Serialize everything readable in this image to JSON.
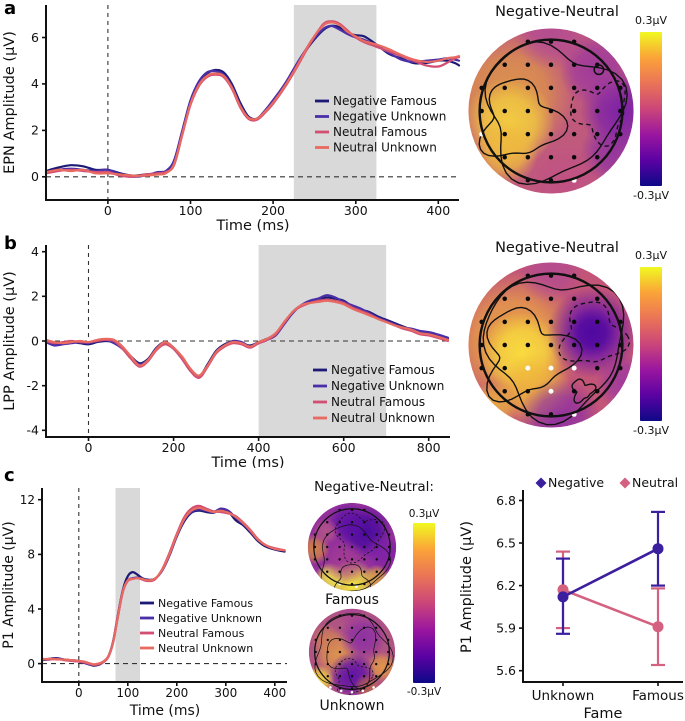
{
  "figure": {
    "panels": [
      {
        "label": "a",
        "topo": {
          "title": "Negative-Neutral",
          "cbar_top": "0.3µV",
          "cbar_bottom": "-0.3µV"
        }
      },
      {
        "label": "b",
        "topo": {
          "title": "Negative-Neutral",
          "cbar_top": "0.3µV",
          "cbar_bottom": "-0.3µV"
        }
      },
      {
        "label": "c",
        "topo": {
          "title": "Negative-Neutral:",
          "cbar_top": "0.3µV",
          "cbar_bottom": "-0.3µV",
          "map_labels": [
            "Famous",
            "Unknown"
          ]
        }
      }
    ],
    "colors": {
      "negative_famous": "#1c1a75",
      "negative_unknown": "#4a2fa8",
      "neutral_famous": "#d24e72",
      "neutral_unknown": "#e86a60",
      "negative": "#3b1f9e",
      "neutral": "#d4617f",
      "highlight_band": "#d9d9d9",
      "plasma": [
        "#0d0887",
        "#5b02a3",
        "#9a169f",
        "#cb4679",
        "#ea7457",
        "#fba338",
        "#f0f921"
      ]
    }
  },
  "chart_data": [
    {
      "id": "epn_erp",
      "type": "line",
      "panel": "a",
      "xlabel": "Time (ms)",
      "ylabel": "EPN Amplitude (µV)",
      "xlim": [
        -75,
        425
      ],
      "ylim": [
        -1.0,
        7.4
      ],
      "xticks": [
        0,
        100,
        200,
        300,
        400
      ],
      "yticks": [
        0,
        2,
        4,
        6
      ],
      "highlight_x": [
        225,
        325
      ],
      "zero_dashed_lines": true,
      "legend_position": "right-center",
      "x": [
        -75,
        -60,
        -45,
        -30,
        -15,
        0,
        15,
        30,
        45,
        60,
        70,
        80,
        90,
        100,
        110,
        120,
        130,
        140,
        150,
        160,
        170,
        180,
        190,
        200,
        215,
        230,
        245,
        260,
        270,
        280,
        290,
        300,
        310,
        325,
        340,
        355,
        370,
        385,
        400,
        410,
        420,
        425
      ],
      "series": [
        {
          "name": "Negative Famous",
          "color": "#1c1a75",
          "values": [
            0.25,
            0.4,
            0.5,
            0.45,
            0.3,
            0.3,
            0.15,
            0.05,
            0.1,
            0.15,
            0.2,
            0.6,
            1.9,
            3.2,
            4.0,
            4.45,
            4.6,
            4.5,
            4.0,
            3.2,
            2.6,
            2.5,
            2.8,
            3.25,
            4.0,
            4.9,
            5.7,
            6.3,
            6.5,
            6.45,
            6.2,
            6.1,
            6.05,
            5.7,
            5.3,
            5.1,
            4.9,
            4.9,
            5.0,
            5.0,
            4.9,
            4.8
          ]
        },
        {
          "name": "Negative Unknown",
          "color": "#4a2fa8",
          "values": [
            0.2,
            0.3,
            0.35,
            0.3,
            0.25,
            0.3,
            0.1,
            0.0,
            0.05,
            0.2,
            0.25,
            0.7,
            2.0,
            3.3,
            4.1,
            4.5,
            4.55,
            4.4,
            3.9,
            3.1,
            2.55,
            2.5,
            2.85,
            3.3,
            4.05,
            4.95,
            5.75,
            6.35,
            6.5,
            6.35,
            6.15,
            6.0,
            5.9,
            5.65,
            5.35,
            5.05,
            4.95,
            5.0,
            5.05,
            5.1,
            5.05,
            5.0
          ]
        },
        {
          "name": "Neutral Famous",
          "color": "#d24e72",
          "values": [
            0.15,
            0.25,
            0.3,
            0.25,
            0.2,
            0.2,
            0.05,
            0.0,
            0.1,
            0.15,
            0.2,
            0.5,
            1.8,
            3.1,
            3.9,
            4.3,
            4.4,
            4.3,
            3.8,
            3.0,
            2.5,
            2.45,
            2.75,
            3.15,
            3.9,
            4.8,
            5.75,
            6.55,
            6.7,
            6.6,
            6.3,
            6.0,
            5.8,
            5.6,
            5.4,
            5.2,
            5.0,
            4.8,
            4.75,
            4.9,
            5.1,
            5.15
          ]
        },
        {
          "name": "Neutral Unknown",
          "color": "#e86a60",
          "values": [
            0.2,
            0.3,
            0.25,
            0.3,
            0.15,
            0.15,
            0.1,
            0.05,
            0.05,
            0.1,
            0.15,
            0.55,
            1.85,
            3.15,
            3.95,
            4.35,
            4.45,
            4.35,
            3.85,
            3.05,
            2.55,
            2.5,
            2.8,
            3.2,
            3.95,
            4.85,
            5.8,
            6.5,
            6.65,
            6.55,
            6.25,
            6.05,
            5.85,
            5.7,
            5.5,
            5.25,
            5.05,
            4.95,
            5.0,
            5.1,
            5.15,
            5.2
          ]
        }
      ]
    },
    {
      "id": "lpp_erp",
      "type": "line",
      "panel": "b",
      "xlabel": "Time (ms)",
      "ylabel": "LPP Amplitude (µV)",
      "xlim": [
        -100,
        850
      ],
      "ylim": [
        -4.3,
        4.3
      ],
      "xticks": [
        0,
        200,
        400,
        600,
        800
      ],
      "yticks": [
        -4,
        -2,
        0,
        2,
        4
      ],
      "highlight_x": [
        400,
        700
      ],
      "zero_dashed_lines": true,
      "legend_position": "right-lower",
      "x": [
        -100,
        -80,
        -60,
        -40,
        -20,
        0,
        20,
        40,
        60,
        80,
        100,
        120,
        140,
        160,
        180,
        200,
        220,
        240,
        260,
        280,
        300,
        320,
        340,
        360,
        380,
        400,
        420,
        440,
        460,
        480,
        500,
        520,
        540,
        560,
        580,
        600,
        620,
        640,
        660,
        680,
        700,
        720,
        740,
        760,
        780,
        800,
        820,
        845
      ],
      "series": [
        {
          "name": "Negative Famous",
          "color": "#1c1a75",
          "values": [
            0.0,
            -0.15,
            -0.1,
            -0.05,
            -0.1,
            -0.15,
            -0.05,
            0.0,
            -0.05,
            -0.3,
            -0.7,
            -1.0,
            -0.8,
            -0.3,
            -0.05,
            -0.3,
            -0.75,
            -1.3,
            -1.6,
            -1.05,
            -0.45,
            -0.15,
            -0.05,
            -0.1,
            -0.2,
            -0.05,
            0.1,
            0.3,
            0.8,
            1.3,
            1.6,
            1.75,
            1.85,
            1.95,
            1.9,
            1.8,
            1.55,
            1.4,
            1.3,
            1.1,
            0.95,
            0.8,
            0.65,
            0.5,
            0.4,
            0.35,
            0.25,
            0.1
          ]
        },
        {
          "name": "Negative Unknown",
          "color": "#4a2fa8",
          "values": [
            -0.05,
            -0.2,
            -0.15,
            -0.1,
            -0.05,
            -0.1,
            0.0,
            0.05,
            -0.1,
            -0.35,
            -0.75,
            -1.05,
            -0.85,
            -0.35,
            -0.1,
            -0.35,
            -0.8,
            -1.35,
            -1.6,
            -1.1,
            -0.5,
            -0.2,
            0.0,
            -0.05,
            -0.25,
            -0.1,
            0.05,
            0.25,
            0.75,
            1.25,
            1.6,
            1.8,
            1.9,
            2.05,
            1.95,
            1.75,
            1.6,
            1.45,
            1.25,
            1.05,
            0.9,
            0.75,
            0.6,
            0.55,
            0.45,
            0.4,
            0.3,
            0.15
          ]
        },
        {
          "name": "Neutral Famous",
          "color": "#d24e72",
          "values": [
            0.0,
            -0.1,
            -0.05,
            0.0,
            -0.05,
            -0.05,
            0.0,
            0.05,
            0.0,
            -0.35,
            -0.8,
            -1.15,
            -0.9,
            -0.4,
            -0.15,
            -0.35,
            -0.8,
            -1.35,
            -1.65,
            -1.15,
            -0.55,
            -0.25,
            -0.1,
            -0.15,
            -0.3,
            -0.1,
            0.05,
            0.3,
            0.8,
            1.3,
            1.55,
            1.7,
            1.8,
            1.85,
            1.8,
            1.7,
            1.5,
            1.35,
            1.2,
            1.0,
            0.85,
            0.7,
            0.55,
            0.45,
            0.3,
            0.25,
            0.15,
            0.0
          ]
        },
        {
          "name": "Neutral Unknown",
          "color": "#e86a60",
          "values": [
            0.05,
            -0.05,
            -0.1,
            -0.05,
            0.0,
            -0.05,
            0.05,
            0.1,
            0.05,
            -0.25,
            -0.7,
            -1.1,
            -0.85,
            -0.35,
            -0.05,
            -0.3,
            -0.7,
            -1.25,
            -1.55,
            -1.1,
            -0.5,
            -0.2,
            -0.05,
            -0.1,
            -0.25,
            -0.05,
            0.1,
            0.35,
            0.85,
            1.3,
            1.6,
            1.7,
            1.75,
            1.8,
            1.75,
            1.65,
            1.45,
            1.3,
            1.15,
            1.0,
            0.85,
            0.7,
            0.6,
            0.5,
            0.35,
            0.3,
            0.2,
            0.05
          ]
        }
      ]
    },
    {
      "id": "p1_erp",
      "type": "line",
      "panel": "c",
      "xlabel": "Time (ms)",
      "ylabel": "P1 Amplitude (µV)",
      "xlim": [
        -75,
        425
      ],
      "ylim": [
        -1.35,
        12.86
      ],
      "xticks": [
        0,
        100,
        200,
        300,
        400
      ],
      "yticks": [
        0,
        4,
        8,
        12
      ],
      "highlight_x": [
        75,
        125
      ],
      "zero_dashed_lines": true,
      "legend_position": "inside-center",
      "x": [
        -75,
        -60,
        -45,
        -30,
        -15,
        0,
        10,
        20,
        30,
        40,
        50,
        60,
        70,
        80,
        90,
        100,
        110,
        120,
        130,
        140,
        155,
        170,
        185,
        200,
        215,
        230,
        245,
        260,
        275,
        290,
        305,
        320,
        335,
        350,
        365,
        380,
        400,
        420
      ],
      "series": [
        {
          "name": "Negative Famous",
          "color": "#1c1a75",
          "values": [
            0.3,
            0.35,
            0.4,
            0.3,
            0.25,
            0.2,
            0.1,
            -0.05,
            -0.15,
            -0.1,
            0.1,
            0.5,
            1.6,
            3.6,
            5.4,
            6.4,
            6.7,
            6.5,
            6.25,
            6.15,
            6.2,
            6.8,
            7.9,
            9.3,
            10.4,
            11.05,
            11.2,
            11.1,
            11.05,
            11.3,
            11.15,
            10.5,
            10.15,
            9.6,
            9.0,
            8.6,
            8.35,
            8.2
          ]
        },
        {
          "name": "Negative Unknown",
          "color": "#4a2fa8",
          "values": [
            0.25,
            0.3,
            0.35,
            0.3,
            0.2,
            0.15,
            0.05,
            -0.05,
            -0.1,
            -0.05,
            0.15,
            0.5,
            1.55,
            3.5,
            5.3,
            6.1,
            6.25,
            6.3,
            6.2,
            6.1,
            6.2,
            6.8,
            7.95,
            9.35,
            10.5,
            11.1,
            11.3,
            11.2,
            11.1,
            11.35,
            11.2,
            10.7,
            10.25,
            9.7,
            9.1,
            8.7,
            8.4,
            8.3
          ]
        },
        {
          "name": "Neutral Famous",
          "color": "#d24e72",
          "values": [
            0.35,
            0.3,
            0.35,
            0.25,
            0.2,
            0.15,
            0.1,
            0.0,
            -0.1,
            -0.05,
            0.1,
            0.45,
            1.5,
            3.45,
            5.25,
            6.05,
            6.2,
            6.25,
            6.15,
            6.05,
            6.15,
            6.9,
            8.1,
            9.5,
            10.7,
            11.35,
            11.55,
            11.35,
            11.15,
            11.1,
            11.0,
            10.8,
            10.35,
            9.8,
            9.15,
            8.7,
            8.45,
            8.3
          ]
        },
        {
          "name": "Neutral Unknown",
          "color": "#e86a60",
          "values": [
            0.3,
            0.35,
            0.3,
            0.3,
            0.25,
            0.2,
            0.15,
            0.05,
            -0.05,
            0.0,
            0.15,
            0.5,
            1.55,
            3.5,
            5.3,
            6.1,
            6.2,
            6.25,
            6.2,
            6.1,
            6.2,
            6.85,
            8.0,
            9.4,
            10.55,
            11.2,
            11.4,
            11.25,
            11.1,
            11.2,
            11.05,
            10.75,
            10.3,
            9.75,
            9.1,
            8.7,
            8.4,
            8.3
          ]
        }
      ]
    },
    {
      "id": "p1_interaction",
      "type": "line",
      "panel": "c",
      "xlabel": "Fame",
      "ylabel": "P1 Amplitude (µV)",
      "categories": [
        "Unknown",
        "Famous"
      ],
      "yticks": [
        5.6,
        5.9,
        6.2,
        6.5,
        6.8
      ],
      "ylim": [
        5.52,
        6.86
      ],
      "error_bars": true,
      "legend_position": "top",
      "series": [
        {
          "name": "Negative",
          "color": "#3b1f9e",
          "values": [
            6.12,
            6.46
          ],
          "ci_low": [
            5.86,
            6.2
          ],
          "ci_high": [
            6.39,
            6.72
          ]
        },
        {
          "name": "Neutral",
          "color": "#d4617f",
          "values": [
            6.17,
            5.91
          ],
          "ci_low": [
            5.9,
            5.64
          ],
          "ci_high": [
            6.44,
            6.18
          ]
        }
      ]
    },
    {
      "id": "topo_a",
      "type": "heatmap",
      "panel": "a",
      "title": "Negative-Neutral",
      "colormap": "plasma",
      "value_range_uV": [
        -0.3,
        0.3
      ],
      "summary": "left fronto-central positivity (yellow), right temporo-parietal negativity (purple)"
    },
    {
      "id": "topo_b",
      "type": "heatmap",
      "panel": "b",
      "title": "Negative-Neutral",
      "colormap": "plasma",
      "value_range_uV": [
        -0.3,
        0.3
      ],
      "summary": "left centro-parietal positivity (yellow), right central negativity (dark purple, dashed contour)"
    },
    {
      "id": "topo_c_famous",
      "type": "heatmap",
      "panel": "c",
      "title": "Famous",
      "colormap": "plasma",
      "value_range_uV": [
        -0.3,
        0.3
      ],
      "summary": "fronto-central negativity (dark purple), occipital positivity (yellow band)"
    },
    {
      "id": "topo_c_unknown",
      "type": "heatmap",
      "panel": "c",
      "title": "Unknown",
      "colormap": "plasma",
      "value_range_uV": [
        -0.3,
        0.3
      ],
      "summary": "mild central/occipital negativity with warm lateral edges"
    }
  ]
}
